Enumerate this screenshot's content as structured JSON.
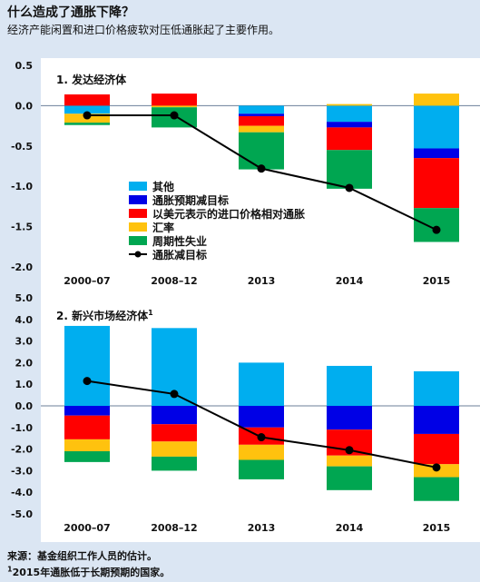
{
  "header": {
    "title": "什么造成了通胀下降？",
    "subtitle": "经济产能闲置和进口价格疲软对压低通胀起了主要作用。"
  },
  "footer": {
    "source": "来源：基金组织工作人员的估计。",
    "note_mark": "1",
    "note_text": "2015年通胀低于长期预期的国家。"
  },
  "colors": {
    "other": "#00aeef",
    "expect": "#0000e6",
    "import": "#ff0000",
    "fx": "#ffc20e",
    "cyclical": "#00a651",
    "target": "#000000",
    "zeroline": "#6b7f99"
  },
  "chart_data": [
    {
      "type": "bar",
      "title": "1. 发达经济体",
      "stacked": true,
      "categories": [
        "2000–07",
        "2008–12",
        "2013",
        "2014",
        "2015"
      ],
      "yticks": [
        "0.5",
        "0.0",
        "-0.5",
        "-1.0",
        "-1.5",
        "-2.0"
      ],
      "ylim": [
        -2.0,
        0.5
      ],
      "grid": false,
      "legend_position": "lower-left",
      "series": [
        {
          "key": "other",
          "name": "其他",
          "values": [
            -0.1,
            0.0,
            -0.1,
            -0.2,
            -0.53
          ]
        },
        {
          "key": "expect",
          "name": "通胀预期减目标",
          "values": [
            0.0,
            0.0,
            -0.03,
            -0.07,
            -0.12
          ]
        },
        {
          "key": "import",
          "name": "以美元表示的进口价格相对通胀",
          "values": [
            0.14,
            0.15,
            -0.12,
            -0.28,
            -0.62
          ]
        },
        {
          "key": "fx",
          "name": "汇率",
          "values": [
            -0.11,
            -0.02,
            -0.08,
            0.02,
            0.15
          ]
        },
        {
          "key": "cyclical",
          "name": "周期性失业",
          "values": [
            -0.03,
            -0.25,
            -0.46,
            -0.48,
            -0.42
          ]
        }
      ],
      "line": {
        "key": "target",
        "name": "通胀减目标",
        "values": [
          -0.12,
          -0.12,
          -0.78,
          -1.02,
          -1.54
        ]
      }
    },
    {
      "type": "bar",
      "title": "2. 新兴市场经济体",
      "title_mark": "1",
      "stacked": true,
      "categories": [
        "2000–07",
        "2008–12",
        "2013",
        "2014",
        "2015"
      ],
      "yticks": [
        "5.0",
        "4.0",
        "3.0",
        "2.0",
        "1.0",
        "0.0",
        "-1.0",
        "-2.0",
        "-3.0",
        "-4.0",
        "-5.0"
      ],
      "ylim": [
        -5.0,
        5.0
      ],
      "grid": false,
      "series": [
        {
          "key": "other",
          "name": "其他",
          "values": [
            3.7,
            3.6,
            2.0,
            1.85,
            1.6
          ]
        },
        {
          "key": "expect",
          "name": "通胀预期减目标",
          "values": [
            -0.45,
            -0.85,
            -1.0,
            -1.1,
            -1.3
          ]
        },
        {
          "key": "import",
          "name": "以美元表示的进口价格相对通胀",
          "values": [
            -1.1,
            -0.8,
            -0.8,
            -1.2,
            -1.4
          ]
        },
        {
          "key": "fx",
          "name": "汇率",
          "values": [
            -0.55,
            -0.7,
            -0.7,
            -0.5,
            -0.6
          ]
        },
        {
          "key": "cyclical",
          "name": "周期性失业",
          "values": [
            -0.5,
            -0.65,
            -0.9,
            -1.1,
            -1.1
          ]
        }
      ],
      "line": {
        "key": "target",
        "name": "通胀减目标",
        "values": [
          1.15,
          0.55,
          -1.45,
          -2.05,
          -2.85
        ]
      }
    }
  ]
}
